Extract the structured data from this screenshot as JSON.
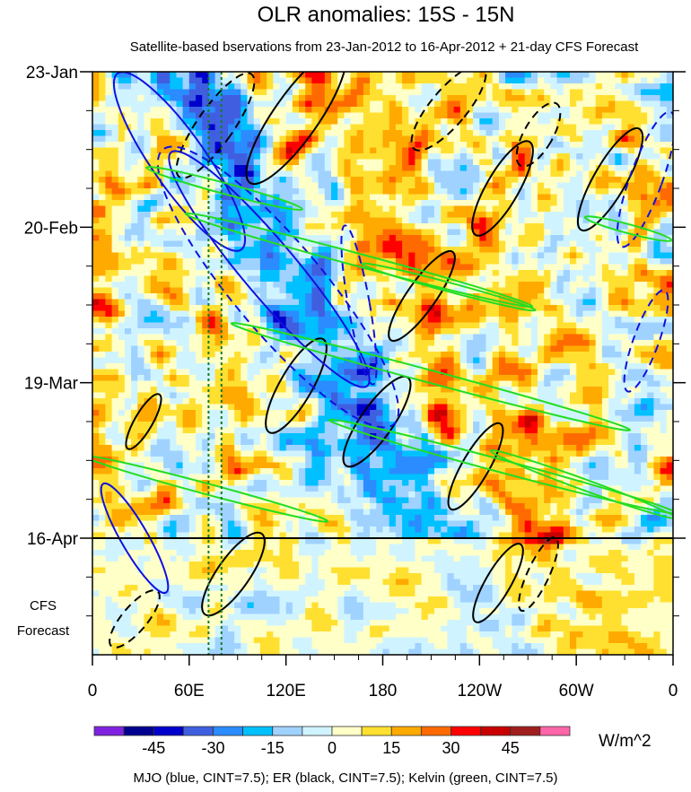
{
  "chart_data": {
    "type": "heatmap",
    "title": "OLR anomalies: 15S - 15N",
    "subtitle": "Satellite-based bservations from 23-Jan-2012 to 16-Apr-2012 + 21-day CFS Forecast",
    "xlabel": "",
    "ylabel": "",
    "x_ticks": [
      "0",
      "60E",
      "120E",
      "180",
      "120W",
      "60W",
      "0"
    ],
    "x_tick_values": [
      0,
      60,
      120,
      180,
      240,
      300,
      360
    ],
    "xlim": [
      0,
      360
    ],
    "y_ticks": [
      "23-Jan",
      "20-Feb",
      "19-Mar",
      "16-Apr"
    ],
    "y_tick_days": [
      0,
      28,
      56,
      84
    ],
    "ylim_days": [
      0,
      105
    ],
    "forecast_label": [
      "CFS",
      "Forecast"
    ],
    "forecast_start_day": 84,
    "reference_longitudes": [
      72,
      80
    ],
    "colorbar": {
      "levels": [
        -52.5,
        -45,
        -37.5,
        -30,
        -22.5,
        -15,
        -7.5,
        0,
        7.5,
        15,
        22.5,
        30,
        37.5,
        45,
        52.5
      ],
      "tick_labels": [
        "-45",
        "-30",
        "-15",
        "0",
        "15",
        "30",
        "45"
      ],
      "colors": [
        "#7f22e0",
        "#00008f",
        "#0000cc",
        "#3f5fe0",
        "#2a8cff",
        "#00c0ff",
        "#a0d2ff",
        "#d0f4ff",
        "#ffffc8",
        "#ffe030",
        "#ffaa00",
        "#ff6a00",
        "#ff0000",
        "#c80000",
        "#a01e1e",
        "#ff66aa"
      ],
      "units": "W/m^2"
    },
    "contours": {
      "legend": "MJO (blue, CINT=7.5); ER (black, CINT=7.5); Kelvin (green, CINT=7.5)",
      "mjo_color": "#1010e0",
      "er_color": "#000000",
      "kelvin_color": "#22dd22"
    }
  }
}
